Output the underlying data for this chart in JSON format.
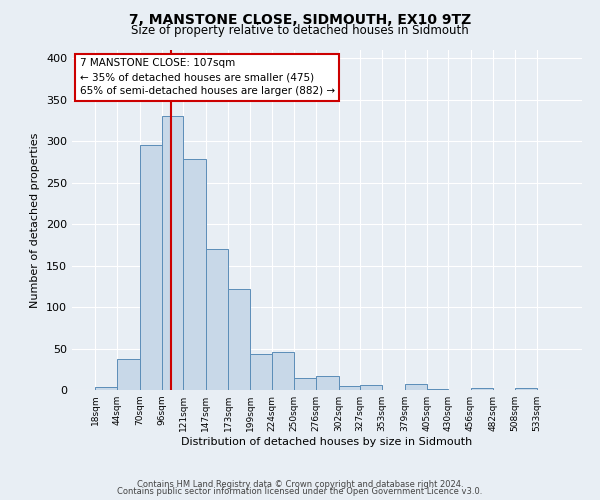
{
  "title": "7, MANSTONE CLOSE, SIDMOUTH, EX10 9TZ",
  "subtitle": "Size of property relative to detached houses in Sidmouth",
  "xlabel": "Distribution of detached houses by size in Sidmouth",
  "ylabel": "Number of detached properties",
  "bin_labels": [
    "18sqm",
    "44sqm",
    "70sqm",
    "96sqm",
    "121sqm",
    "147sqm",
    "173sqm",
    "199sqm",
    "224sqm",
    "250sqm",
    "276sqm",
    "302sqm",
    "327sqm",
    "353sqm",
    "379sqm",
    "405sqm",
    "430sqm",
    "456sqm",
    "482sqm",
    "508sqm",
    "533sqm"
  ],
  "bar_values": [
    4,
    37,
    296,
    330,
    278,
    170,
    122,
    43,
    46,
    15,
    17,
    5,
    6,
    0,
    7,
    1,
    0,
    3,
    0,
    2,
    0
  ],
  "bar_color": "#c8d8e8",
  "bar_edge_color": "#5b8db8",
  "vline_x": 107,
  "vline_color": "#cc0000",
  "annotation_title": "7 MANSTONE CLOSE: 107sqm",
  "annotation_line1": "← 35% of detached houses are smaller (475)",
  "annotation_line2": "65% of semi-detached houses are larger (882) →",
  "annotation_box_edgecolor": "#cc0000",
  "ylim": [
    0,
    410
  ],
  "yticks": [
    0,
    50,
    100,
    150,
    200,
    250,
    300,
    350,
    400
  ],
  "footer1": "Contains HM Land Registry data © Crown copyright and database right 2024.",
  "footer2": "Contains public sector information licensed under the Open Government Licence v3.0.",
  "background_color": "#e8eef4",
  "bin_edges": [
    18,
    44,
    70,
    96,
    121,
    147,
    173,
    199,
    224,
    250,
    276,
    302,
    327,
    353,
    379,
    405,
    430,
    456,
    482,
    508,
    533,
    559
  ]
}
